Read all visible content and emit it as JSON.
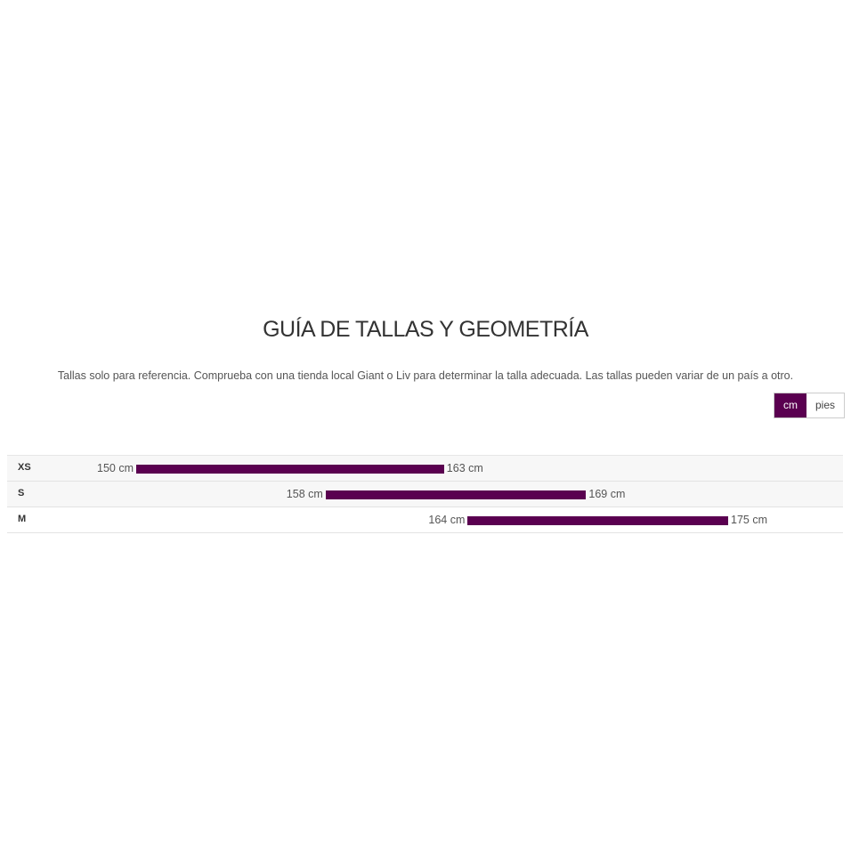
{
  "title": "GUÍA DE TALLAS Y GEOMETRÍA",
  "note": "Tallas solo para referencia. Comprueba con una tienda local Giant o Liv para determinar la talla adecuada. Las tallas pueden variar de un país a otro.",
  "units": {
    "options": [
      "cm",
      "pies"
    ],
    "selected": "cm"
  },
  "accent_color": "#5a0050",
  "sizes": [
    {
      "size": "XS",
      "min": 150,
      "max": 163,
      "min_label": "150 cm",
      "max_label": "163 cm"
    },
    {
      "size": "S",
      "min": 158,
      "max": 169,
      "min_label": "158 cm",
      "max_label": "169 cm"
    },
    {
      "size": "M",
      "min": 164,
      "max": 175,
      "min_label": "164 cm",
      "max_label": "175 cm"
    }
  ]
}
